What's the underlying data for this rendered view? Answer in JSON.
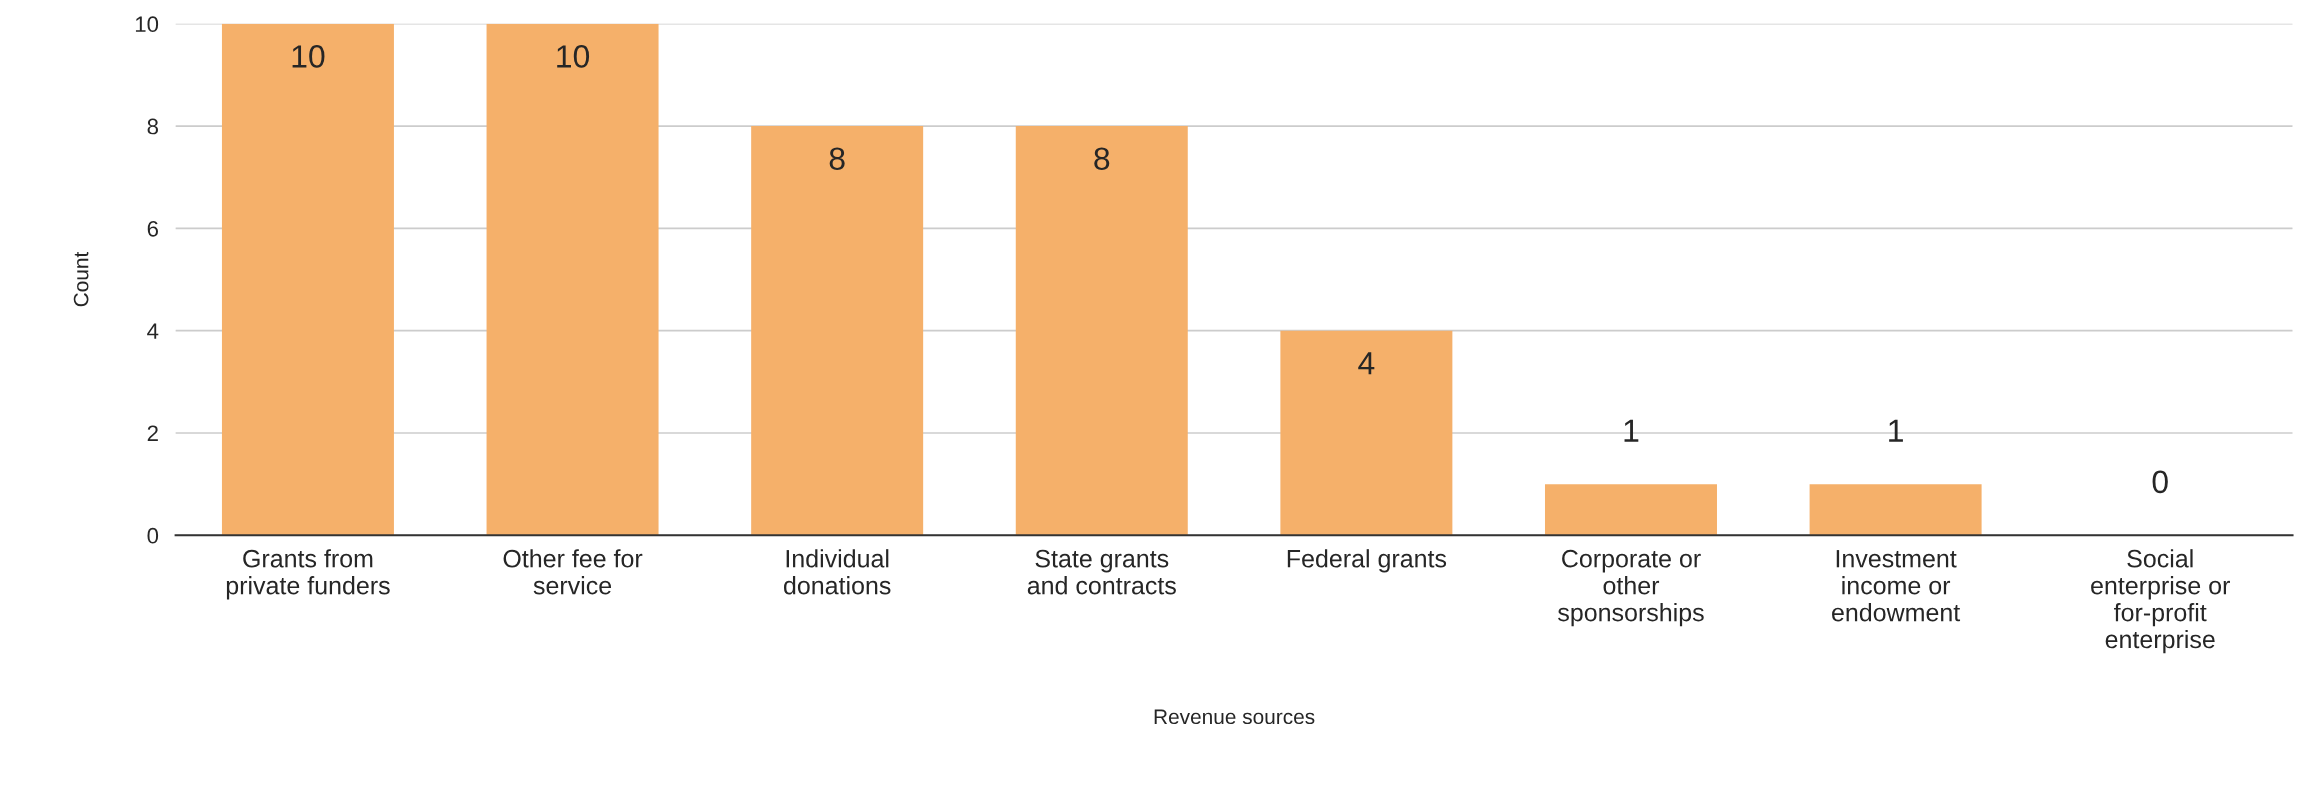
{
  "chart_data": {
    "type": "bar",
    "xlabel": "Revenue sources",
    "ylabel": "Count",
    "categories": [
      "Grants from private funders",
      "Other fee for service",
      "Individual donations",
      "State grants and contracts",
      "Federal grants",
      "Corporate or other sponsorships",
      "Investment income or endowment",
      "Social enterprise or for-profit enterprise"
    ],
    "values": [
      10,
      10,
      8,
      8,
      4,
      1,
      1,
      0
    ],
    "color": "#f5b06a",
    "ylim": [
      0,
      10
    ],
    "yticks": [
      0,
      2,
      4,
      6,
      8,
      10
    ],
    "grid": "y",
    "data_labels": true
  }
}
